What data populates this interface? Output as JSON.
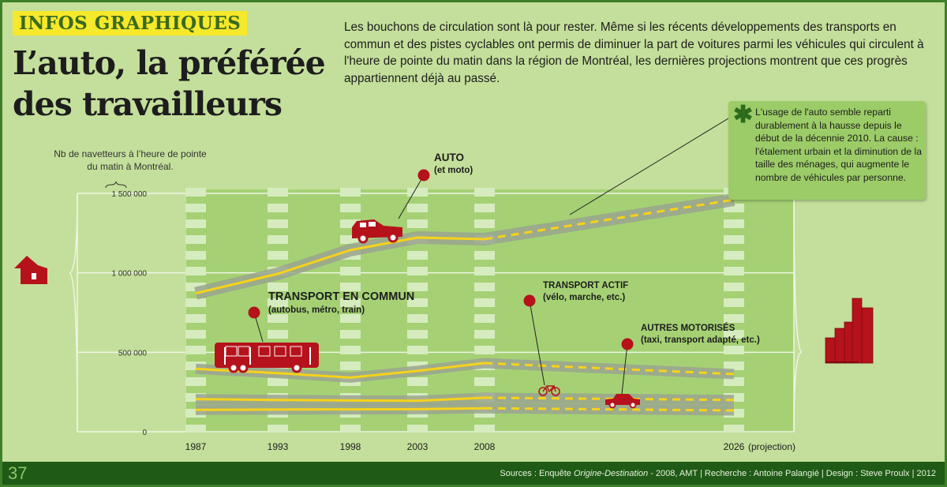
{
  "header": {
    "tag": "INFOS GRAPHIQUES",
    "title": "L’auto, la préférée des travailleurs",
    "intro": "Les bouchons de circulation sont là pour rester. Même si les récents développements des transports en commun et des pistes cyclables ont permis de diminuer la part de voitures parmi les véhicules qui circulent à l'heure de pointe du matin dans la région de Montréal, les dernières projections montrent que ces progrès appartiennent déjà au passé."
  },
  "note": {
    "icon": "asterisk-icon",
    "text": "L'usage de l'auto semble reparti durablement à la hausse depuis le début de la décennie 2010. La cause : l'étalement urbain et la diminution de la taille des ménages, qui augmente le nombre de véhicules par personne."
  },
  "labels": {
    "auto": {
      "title": "AUTO",
      "sub": "(et moto)"
    },
    "transit": {
      "title": "TRANSPORT EN COMMUN",
      "sub": "(autobus, métro, train)"
    },
    "active": {
      "title": "TRANSPORT ACTIF",
      "sub": "(vélo, marche, etc.)"
    },
    "other": {
      "title": "AUTRES MOTORISÉS",
      "sub": "(taxi, transport adapté, etc.)"
    }
  },
  "footer": {
    "page": "37",
    "sources_prefix": "Sources : Enquête ",
    "sources_italic": "Origine-Destination",
    "sources_suffix": " - 2008, AMT | Recherche : Antoine Palangié | Design : Steve Proulx | 2012"
  },
  "colors": {
    "road": "#9aa58f",
    "line": "#f7d21a",
    "accent": "#b5121b",
    "plot": "#a5d174"
  },
  "chart_data": {
    "type": "line",
    "title": "L’auto, la préférée des travailleurs",
    "ylabel": "Nb de navetteurs à l’heure de pointe du matin à Montréal.",
    "xlabel": "",
    "x": [
      1987,
      1993,
      1998,
      2003,
      2008,
      2026
    ],
    "x_tick_labels": [
      "1987",
      "1993",
      "1998",
      "2003",
      "2008",
      "2026"
    ],
    "x_note": "(projection)",
    "projection_from": 2008,
    "ylim": [
      0,
      1500000
    ],
    "y_ticks": [
      0,
      500000,
      1000000,
      1500000
    ],
    "y_tick_labels": [
      "0",
      "500 000",
      "1 000 000",
      "1 500 000"
    ],
    "grid": true,
    "series": [
      {
        "name": "AUTO (et moto)",
        "values": [
          871000,
          994000,
          1143000,
          1222000,
          1212000,
          1460000
        ]
      },
      {
        "name": "TRANSPORT EN COMMUN (autobus, métro, train)",
        "values": [
          396000,
          369000,
          341000,
          383000,
          432000,
          363000
        ]
      },
      {
        "name": "TRANSPORT ACTIF (vélo, marche, etc.)",
        "values": [
          205000,
          200000,
          197000,
          195000,
          214000,
          200000
        ]
      },
      {
        "name": "AUTRES MOTORISÉS (taxi, transport adapté, etc.)",
        "values": [
          138000,
          140000,
          141000,
          142000,
          148000,
          134000
        ]
      }
    ]
  }
}
